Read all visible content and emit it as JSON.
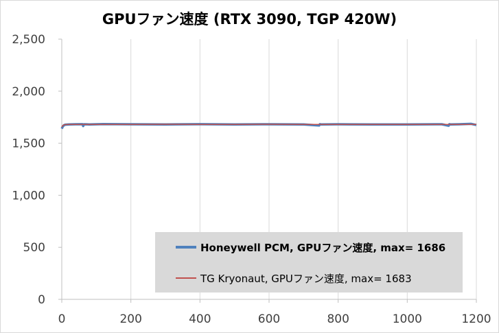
{
  "chart_data": {
    "type": "line",
    "title": "GPUファン速度 (RTX 3090, TGP 420W)",
    "xlabel": "",
    "ylabel": "",
    "xlim": [
      0,
      1200
    ],
    "ylim": [
      0,
      2500
    ],
    "x_ticks": [
      0,
      200,
      400,
      600,
      800,
      1000,
      1200
    ],
    "y_ticks": [
      0,
      500,
      1000,
      1500,
      2000,
      2500
    ],
    "y_tick_labels": [
      "0",
      "500",
      "1,000",
      "1,500",
      "2,000",
      "2,500"
    ],
    "x_tick_labels": [
      "0",
      "200",
      "400",
      "600",
      "800",
      "1000",
      "1200"
    ],
    "grid": "vertical",
    "legend_position": "bottom-right",
    "series": [
      {
        "name": "Honeywell PCM, GPUファン速度, max=  1686",
        "color": "#4f81bd",
        "x": [
          0,
          3,
          6,
          10,
          20,
          40,
          60,
          62,
          64,
          80,
          120,
          200,
          300,
          400,
          500,
          600,
          700,
          745,
          747,
          750,
          800,
          900,
          1000,
          1100,
          1120,
          1122,
          1125,
          1150,
          1185,
          1200
        ],
        "y": [
          1640,
          1660,
          1672,
          1678,
          1680,
          1682,
          1683,
          1665,
          1682,
          1681,
          1684,
          1682,
          1681,
          1683,
          1681,
          1682,
          1681,
          1670,
          1683,
          1681,
          1682,
          1680,
          1681,
          1682,
          1668,
          1683,
          1681,
          1682,
          1686,
          1675
        ]
      },
      {
        "name": "TG Kryonaut, GPUファン速度, max=  1683",
        "color": "#c0504d",
        "x": [
          0,
          3,
          6,
          10,
          20,
          100,
          200,
          300,
          400,
          500,
          600,
          700,
          800,
          900,
          1000,
          1100,
          1200
        ],
        "y": [
          1655,
          1670,
          1676,
          1679,
          1680,
          1681,
          1681,
          1682,
          1681,
          1681,
          1682,
          1681,
          1681,
          1680,
          1681,
          1681,
          1680
        ]
      }
    ]
  }
}
